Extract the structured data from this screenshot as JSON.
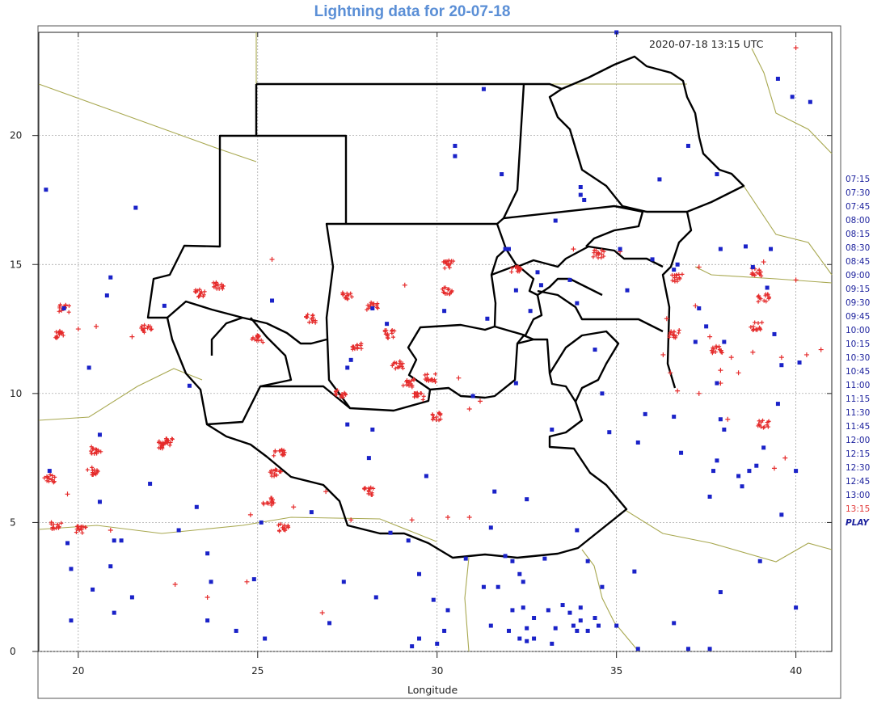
{
  "title": "Lightning data for 20-07-18",
  "timestamp": "2020-07-18 13:15 UTC",
  "map": {
    "xlabel": "Longitude",
    "ylabel": "",
    "x_ticks": [
      "20",
      "25",
      "30",
      "35",
      "40"
    ],
    "y_ticks": [
      "0",
      "5",
      "10",
      "15",
      "20"
    ],
    "x_range": [
      18.9,
      41
    ],
    "y_range": [
      0,
      24
    ],
    "colors": {
      "border": "#000000",
      "coast": "#a8a850",
      "grid": "#9a9a9a",
      "strike_recent": "#e52b2b",
      "strike_old": "#1a22c8"
    }
  },
  "time_steps": [
    "07:15",
    "07:30",
    "07:45",
    "08:00",
    "08:15",
    "08:30",
    "08:45",
    "09:00",
    "09:15",
    "09:30",
    "09:45",
    "10:00",
    "10:15",
    "10:30",
    "10:45",
    "11:00",
    "11:15",
    "11:30",
    "11:45",
    "12:00",
    "12:15",
    "12:30",
    "12:45",
    "13:00",
    "13:15"
  ],
  "current_time": "13:15",
  "play_label": "PLAY",
  "strikes": {
    "red_clusters": [
      [
        19.6,
        13.3
      ],
      [
        19.5,
        12.3
      ],
      [
        19.2,
        6.7
      ],
      [
        19.4,
        4.9
      ],
      [
        20.1,
        4.7
      ],
      [
        20.5,
        7.8
      ],
      [
        20.4,
        7.0
      ],
      [
        21.9,
        12.5
      ],
      [
        22.5,
        8.1
      ],
      [
        23.9,
        14.2
      ],
      [
        23.4,
        13.9
      ],
      [
        25.0,
        12.1
      ],
      [
        26.5,
        12.9
      ],
      [
        27.5,
        13.8
      ],
      [
        27.8,
        11.8
      ],
      [
        28.2,
        13.4
      ],
      [
        28.7,
        12.3
      ],
      [
        28.9,
        11.1
      ],
      [
        29.2,
        10.4
      ],
      [
        29.5,
        9.9
      ],
      [
        29.8,
        10.6
      ],
      [
        30.0,
        9.1
      ],
      [
        30.3,
        15.0
      ],
      [
        30.3,
        14.0
      ],
      [
        32.2,
        14.8
      ],
      [
        34.5,
        15.4
      ],
      [
        36.7,
        14.5
      ],
      [
        36.6,
        12.3
      ],
      [
        37.8,
        11.7
      ],
      [
        38.9,
        12.6
      ],
      [
        39.1,
        13.7
      ],
      [
        38.9,
        14.7
      ],
      [
        39.1,
        8.8
      ],
      [
        25.6,
        7.7
      ],
      [
        25.5,
        6.9
      ],
      [
        25.7,
        4.8
      ],
      [
        28.1,
        6.2
      ],
      [
        25.3,
        5.8
      ],
      [
        27.3,
        10.0
      ],
      [
        22.4,
        8.0
      ]
    ],
    "red_crosses": [
      [
        20.0,
        12.5
      ],
      [
        20.5,
        12.6
      ],
      [
        21.5,
        12.2
      ],
      [
        19.7,
        6.1
      ],
      [
        20.9,
        4.7
      ],
      [
        22.7,
        2.6
      ],
      [
        23.6,
        2.1
      ],
      [
        24.7,
        2.7
      ],
      [
        26.8,
        1.5
      ],
      [
        24.8,
        5.3
      ],
      [
        26.0,
        5.6
      ],
      [
        26.9,
        6.2
      ],
      [
        27.6,
        5.1
      ],
      [
        29.3,
        5.1
      ],
      [
        30.3,
        5.2
      ],
      [
        30.9,
        5.2
      ],
      [
        30.6,
        10.6
      ],
      [
        31.2,
        9.7
      ],
      [
        30.9,
        9.4
      ],
      [
        29.1,
        14.2
      ],
      [
        25.4,
        15.2
      ],
      [
        23.9,
        14.2
      ],
      [
        36.7,
        10.1
      ],
      [
        37.3,
        10.0
      ],
      [
        37.9,
        10.4
      ],
      [
        38.4,
        10.8
      ],
      [
        39.6,
        11.4
      ],
      [
        40.3,
        11.5
      ],
      [
        40.7,
        11.7
      ],
      [
        38.1,
        9.0
      ],
      [
        37.9,
        10.9
      ],
      [
        39.7,
        7.5
      ],
      [
        39.4,
        7.1
      ],
      [
        40.0,
        14.4
      ],
      [
        39.1,
        15.1
      ],
      [
        37.3,
        14.9
      ],
      [
        35.1,
        15.5
      ],
      [
        33.8,
        15.6
      ],
      [
        40.0,
        23.4
      ],
      [
        37.6,
        12.2
      ],
      [
        38.2,
        11.4
      ],
      [
        36.3,
        11.5
      ],
      [
        36.5,
        10.8
      ],
      [
        38.8,
        11.6
      ],
      [
        37.2,
        13.4
      ],
      [
        36.4,
        12.9
      ]
    ],
    "blue_squares": [
      [
        19.1,
        17.9
      ],
      [
        21.6,
        17.2
      ],
      [
        19.6,
        13.3
      ],
      [
        20.9,
        14.5
      ],
      [
        20.8,
        13.8
      ],
      [
        22.4,
        13.4
      ],
      [
        20.3,
        11.0
      ],
      [
        23.1,
        10.3
      ],
      [
        20.6,
        8.4
      ],
      [
        19.2,
        7.0
      ],
      [
        20.6,
        5.8
      ],
      [
        19.7,
        4.2
      ],
      [
        19.8,
        3.2
      ],
      [
        21.0,
        4.3
      ],
      [
        21.2,
        4.3
      ],
      [
        20.4,
        2.4
      ],
      [
        20.9,
        3.3
      ],
      [
        21.5,
        2.1
      ],
      [
        21.0,
        1.5
      ],
      [
        19.8,
        1.2
      ],
      [
        22.0,
        6.5
      ],
      [
        22.8,
        4.7
      ],
      [
        23.3,
        5.6
      ],
      [
        23.6,
        3.8
      ],
      [
        23.7,
        2.7
      ],
      [
        23.6,
        1.2
      ],
      [
        24.4,
        0.8
      ],
      [
        24.9,
        2.8
      ],
      [
        25.2,
        0.5
      ],
      [
        25.1,
        5.0
      ],
      [
        25.4,
        13.6
      ],
      [
        26.5,
        5.4
      ],
      [
        27.0,
        1.1
      ],
      [
        27.4,
        2.7
      ],
      [
        27.5,
        8.8
      ],
      [
        27.5,
        11.0
      ],
      [
        27.6,
        11.3
      ],
      [
        28.2,
        8.6
      ],
      [
        28.1,
        7.5
      ],
      [
        28.3,
        2.1
      ],
      [
        28.7,
        4.6
      ],
      [
        28.6,
        12.7
      ],
      [
        28.2,
        13.3
      ],
      [
        29.2,
        4.3
      ],
      [
        29.5,
        3.0
      ],
      [
        29.3,
        0.2
      ],
      [
        29.5,
        0.5
      ],
      [
        29.7,
        6.8
      ],
      [
        29.9,
        2.0
      ],
      [
        30.0,
        0.3
      ],
      [
        30.3,
        1.6
      ],
      [
        30.2,
        0.8
      ],
      [
        30.5,
        19.6
      ],
      [
        30.5,
        19.2
      ],
      [
        30.2,
        13.2
      ],
      [
        31.3,
        21.8
      ],
      [
        31.0,
        9.9
      ],
      [
        30.8,
        3.6
      ],
      [
        31.3,
        2.5
      ],
      [
        31.5,
        1.0
      ],
      [
        31.4,
        12.9
      ],
      [
        31.6,
        6.2
      ],
      [
        31.5,
        4.8
      ],
      [
        31.7,
        2.5
      ],
      [
        31.9,
        3.7
      ],
      [
        31.8,
        18.5
      ],
      [
        31.9,
        15.6
      ],
      [
        32.0,
        15.6
      ],
      [
        32.2,
        14.0
      ],
      [
        32.0,
        0.8
      ],
      [
        32.1,
        3.5
      ],
      [
        32.1,
        1.6
      ],
      [
        32.4,
        1.7
      ],
      [
        32.3,
        0.5
      ],
      [
        32.3,
        3.0
      ],
      [
        32.4,
        2.7
      ],
      [
        32.5,
        0.4
      ],
      [
        32.5,
        0.9
      ],
      [
        32.7,
        1.3
      ],
      [
        32.7,
        0.5
      ],
      [
        32.5,
        5.9
      ],
      [
        32.6,
        13.2
      ],
      [
        32.8,
        14.7
      ],
      [
        32.9,
        14.2
      ],
      [
        32.2,
        10.4
      ],
      [
        33.0,
        3.6
      ],
      [
        33.1,
        1.6
      ],
      [
        33.3,
        0.9
      ],
      [
        33.2,
        8.6
      ],
      [
        33.2,
        0.3
      ],
      [
        33.5,
        1.8
      ],
      [
        33.7,
        1.5
      ],
      [
        33.8,
        1.0
      ],
      [
        33.9,
        0.8
      ],
      [
        34.0,
        1.2
      ],
      [
        33.9,
        4.7
      ],
      [
        33.9,
        13.5
      ],
      [
        33.7,
        14.4
      ],
      [
        33.3,
        16.7
      ],
      [
        34.0,
        18.0
      ],
      [
        34.0,
        17.7
      ],
      [
        34.1,
        17.5
      ],
      [
        34.0,
        1.7
      ],
      [
        34.2,
        3.5
      ],
      [
        34.2,
        0.8
      ],
      [
        34.4,
        1.3
      ],
      [
        34.5,
        1.0
      ],
      [
        34.6,
        2.5
      ],
      [
        34.4,
        11.7
      ],
      [
        34.6,
        10.0
      ],
      [
        34.8,
        8.5
      ],
      [
        35.1,
        15.6
      ],
      [
        35.3,
        14.0
      ],
      [
        35.0,
        1.0
      ],
      [
        35.5,
        3.1
      ],
      [
        35.6,
        0.1
      ],
      [
        35.6,
        8.1
      ],
      [
        35.8,
        9.2
      ],
      [
        35.0,
        24.0
      ],
      [
        36.0,
        15.2
      ],
      [
        36.2,
        18.3
      ],
      [
        36.6,
        9.1
      ],
      [
        36.8,
        7.7
      ],
      [
        36.6,
        1.1
      ],
      [
        36.7,
        15.0
      ],
      [
        36.6,
        14.8
      ],
      [
        37.0,
        19.6
      ],
      [
        37.3,
        13.3
      ],
      [
        37.0,
        0.1
      ],
      [
        37.2,
        12.0
      ],
      [
        37.5,
        12.6
      ],
      [
        37.6,
        6.0
      ],
      [
        37.6,
        0.1
      ],
      [
        37.7,
        7.0
      ],
      [
        37.8,
        7.4
      ],
      [
        37.8,
        10.4
      ],
      [
        37.9,
        9.0
      ],
      [
        38.0,
        8.6
      ],
      [
        37.8,
        18.5
      ],
      [
        37.9,
        15.6
      ],
      [
        37.9,
        2.3
      ],
      [
        38.0,
        12.0
      ],
      [
        38.4,
        6.8
      ],
      [
        38.5,
        6.4
      ],
      [
        38.7,
        7.0
      ],
      [
        38.9,
        7.2
      ],
      [
        38.6,
        15.7
      ],
      [
        38.8,
        14.9
      ],
      [
        39.0,
        3.5
      ],
      [
        39.1,
        7.9
      ],
      [
        39.2,
        14.1
      ],
      [
        39.3,
        15.6
      ],
      [
        39.4,
        12.3
      ],
      [
        39.6,
        5.3
      ],
      [
        39.5,
        9.6
      ],
      [
        39.6,
        11.1
      ],
      [
        40.0,
        7.0
      ],
      [
        40.0,
        1.7
      ],
      [
        40.1,
        11.2
      ],
      [
        39.9,
        21.5
      ],
      [
        40.4,
        21.3
      ],
      [
        39.5,
        22.2
      ],
      [
        19.6,
        13.3
      ]
    ]
  }
}
